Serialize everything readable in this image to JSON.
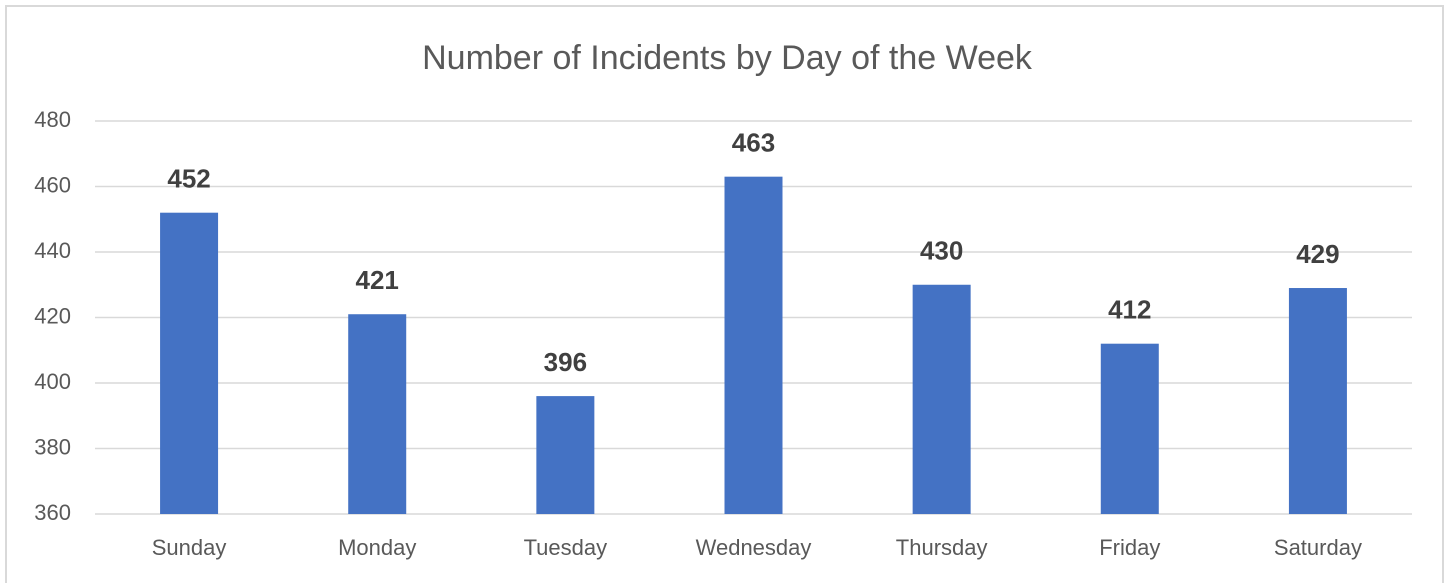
{
  "chart_data": {
    "type": "bar",
    "title": "Number of Incidents by Day of the Week",
    "categories": [
      "Sunday",
      "Monday",
      "Tuesday",
      "Wednesday",
      "Thursday",
      "Friday",
      "Saturday"
    ],
    "values": [
      452,
      421,
      396,
      463,
      430,
      412,
      429
    ],
    "color": "#4472c4",
    "ylim": [
      360,
      480
    ],
    "yticks": [
      360,
      380,
      400,
      420,
      440,
      460,
      480
    ],
    "grid": true
  }
}
